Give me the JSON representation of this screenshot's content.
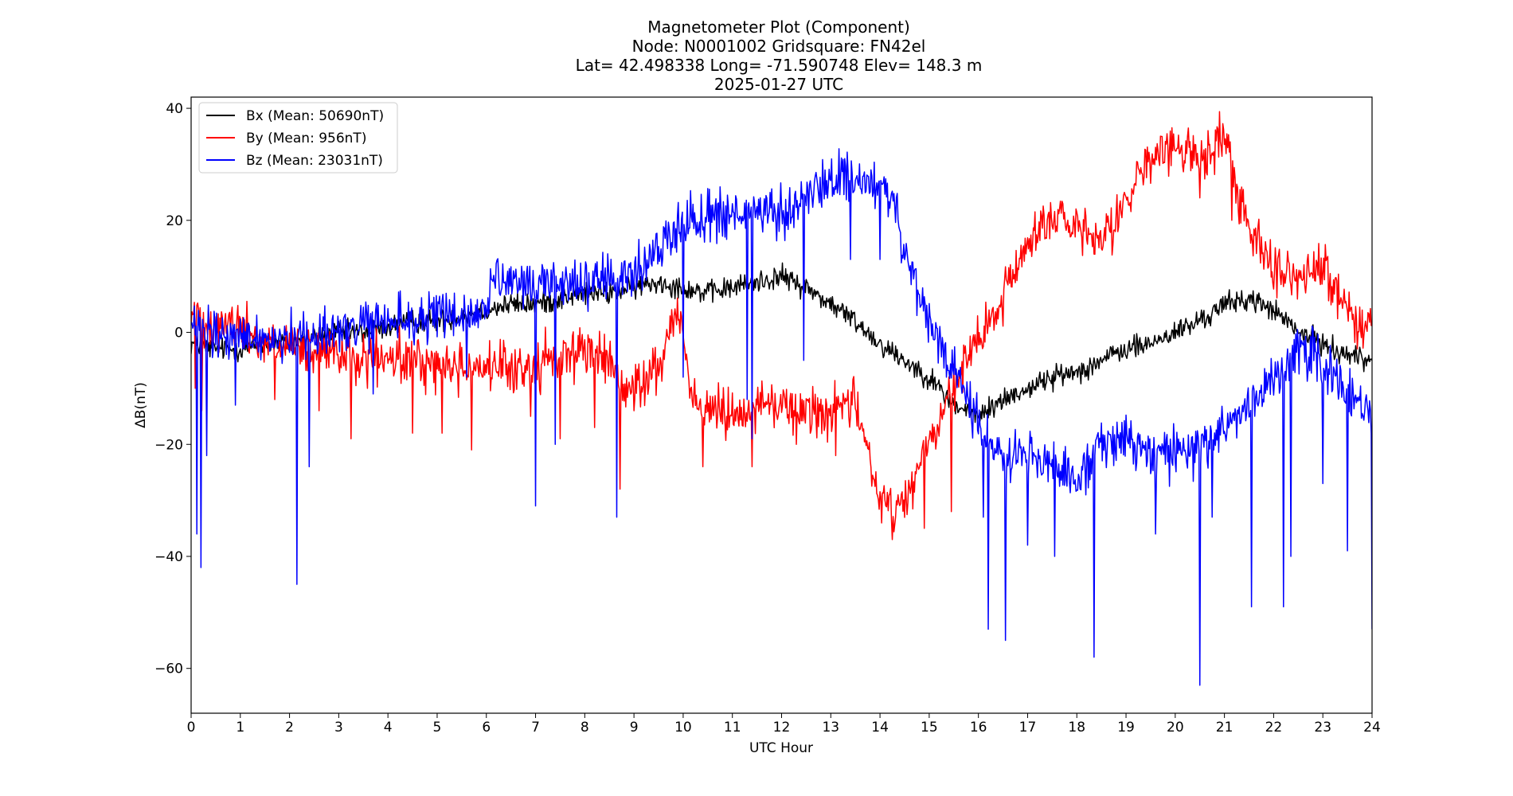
{
  "chart_data": {
    "type": "line",
    "title_lines": [
      "Magnetometer Plot (Component)",
      "Node:  N0001002     Gridsquare:  FN42el",
      "Lat= 42.498338    Long= -71.590748    Elev= 148.3 m",
      "2025-01-27  UTC"
    ],
    "xlabel": "UTC Hour",
    "ylabel": "ΔB(nT)",
    "xlim": [
      0,
      24
    ],
    "ylim": [
      -68,
      42
    ],
    "x_ticks": [
      0,
      1,
      2,
      3,
      4,
      5,
      6,
      7,
      8,
      9,
      10,
      11,
      12,
      13,
      14,
      15,
      16,
      17,
      18,
      19,
      20,
      21,
      22,
      23,
      24
    ],
    "x_tick_labels": [
      "0",
      "1",
      "2",
      "3",
      "4",
      "5",
      "6",
      "7",
      "8",
      "9",
      "10",
      "11",
      "12",
      "13",
      "14",
      "15",
      "16",
      "17",
      "18",
      "19",
      "20",
      "21",
      "22",
      "23",
      "24"
    ],
    "y_ticks": [
      40,
      20,
      0,
      -20,
      -40,
      -60
    ],
    "y_tick_labels": [
      "40",
      "20",
      "0",
      "−20",
      "−40",
      "−60"
    ],
    "grid": false,
    "legend_position": "top-left",
    "series": [
      {
        "name": "Bx (Mean: 50690nT)",
        "color": "#000000",
        "noise": 1.0,
        "x": [
          0,
          0.5,
          1,
          1.5,
          2,
          2.5,
          3,
          3.5,
          4,
          4.5,
          5,
          5.5,
          6,
          6.5,
          7,
          7.5,
          8,
          8.5,
          9,
          9.5,
          10,
          10.5,
          11,
          11.5,
          12,
          12.5,
          13,
          13.5,
          14,
          14.5,
          15,
          15.5,
          16,
          16.5,
          17,
          17.5,
          18,
          18.5,
          19,
          19.5,
          20,
          20.5,
          21,
          21.5,
          22,
          22.5,
          23,
          23.5,
          24
        ],
        "values": [
          -2,
          -3,
          -3,
          -2,
          -2,
          -1,
          0,
          0,
          1,
          2,
          2,
          3,
          4,
          5,
          5,
          6,
          7,
          7,
          8,
          9,
          8,
          7,
          8,
          9,
          10,
          8,
          5,
          2,
          -2,
          -5,
          -8,
          -13,
          -15,
          -12,
          -10,
          -8,
          -7,
          -5,
          -3,
          -2,
          0,
          2,
          5,
          6,
          4,
          0,
          -2,
          -4,
          -5
        ],
        "spikes": []
      },
      {
        "name": "By (Mean: 956nT)",
        "color": "#ff0000",
        "noise": 2.2,
        "x": [
          0,
          0.5,
          1,
          1.5,
          2,
          2.5,
          3,
          3.5,
          4,
          4.5,
          5,
          5.5,
          6,
          6.5,
          7,
          7.5,
          8,
          8.5,
          8.8,
          9.2,
          9.6,
          9.9,
          10.2,
          10.5,
          11,
          11.5,
          12,
          12.5,
          13,
          13.5,
          13.8,
          14,
          14.3,
          14.6,
          15,
          15.3,
          15.6,
          15.9,
          16.2,
          16.5,
          17,
          17.5,
          18,
          18.5,
          19,
          19.5,
          20,
          20.5,
          21,
          21.3,
          21.6,
          22,
          22.5,
          23,
          23.5,
          24
        ],
        "values": [
          3,
          2,
          1,
          -2,
          -3,
          -4,
          -4,
          -5,
          -5,
          -5,
          -6,
          -6,
          -6,
          -7,
          -6,
          -4,
          -3,
          -5,
          -11,
          -9,
          -4,
          5,
          -12,
          -14,
          -14,
          -13,
          -13,
          -14,
          -14,
          -13,
          -22,
          -30,
          -32,
          -28,
          -20,
          -14,
          -8,
          -3,
          1,
          6,
          16,
          21,
          18,
          15,
          24,
          31,
          33,
          31,
          35,
          24,
          18,
          12,
          9,
          12,
          4,
          1
        ],
        "spikes": [
          [
            0.08,
            -10
          ],
          [
            0.22,
            -14
          ],
          [
            1.7,
            -12
          ],
          [
            2.6,
            -14
          ],
          [
            3.25,
            -19
          ],
          [
            4.5,
            -18
          ],
          [
            5.1,
            -18
          ],
          [
            5.7,
            -21
          ],
          [
            6.9,
            -15
          ],
          [
            7.5,
            -19
          ],
          [
            8.2,
            -17
          ],
          [
            8.72,
            -28
          ],
          [
            9.0,
            -14
          ],
          [
            10.4,
            -24
          ],
          [
            11.4,
            -24
          ],
          [
            12.3,
            -20
          ],
          [
            13.1,
            -22
          ],
          [
            14.25,
            -37
          ],
          [
            14.9,
            -35
          ],
          [
            15.45,
            -32
          ],
          [
            20.5,
            24
          ],
          [
            21.15,
            20
          ]
        ]
      },
      {
        "name": "Bz (Mean: 23031nT)",
        "color": "#0000ff",
        "noise": 2.2,
        "x": [
          0,
          0.3,
          0.5,
          1,
          1.5,
          2,
          2.5,
          3,
          3.5,
          4,
          4.5,
          5,
          5.5,
          5.9,
          6.1,
          6.5,
          7,
          7.5,
          8,
          8.5,
          9,
          9.3,
          9.7,
          10,
          10.5,
          11,
          11.5,
          12,
          12.5,
          13,
          13.3,
          13.6,
          14,
          14.3,
          14.6,
          14.9,
          15.2,
          15.5,
          15.8,
          16.1,
          16.5,
          17,
          17.5,
          18,
          18.5,
          19,
          19.5,
          20,
          20.5,
          21,
          21.5,
          22,
          22.5,
          23,
          23.3,
          23.6,
          24
        ],
        "values": [
          1,
          0,
          -1,
          -1,
          -1,
          -1,
          0,
          0,
          1,
          2,
          2,
          3,
          3,
          3,
          9,
          8,
          9,
          9,
          9,
          9,
          10,
          13,
          17,
          20,
          21,
          21,
          21,
          21,
          24,
          27,
          28,
          27,
          26,
          22,
          12,
          3,
          -2,
          -6,
          -13,
          -18,
          -22,
          -21,
          -24,
          -26,
          -20,
          -19,
          -22,
          -21,
          -21,
          -17,
          -13,
          -8,
          -2,
          -6,
          -9,
          -12,
          -14
        ],
        "spikes": [
          [
            0.12,
            -36
          ],
          [
            0.2,
            -42
          ],
          [
            0.32,
            -22
          ],
          [
            0.9,
            -13
          ],
          [
            2.15,
            -45
          ],
          [
            2.4,
            -24
          ],
          [
            3.7,
            -11
          ],
          [
            5.6,
            -8
          ],
          [
            7.0,
            -31
          ],
          [
            7.4,
            -20
          ],
          [
            8.65,
            -33
          ],
          [
            10.0,
            -8
          ],
          [
            11.3,
            -12
          ],
          [
            11.4,
            -19
          ],
          [
            12.45,
            -5
          ],
          [
            13.4,
            13
          ],
          [
            14.0,
            13
          ],
          [
            14.75,
            3
          ],
          [
            15.35,
            -8
          ],
          [
            16.1,
            -33
          ],
          [
            16.2,
            -53
          ],
          [
            16.55,
            -55
          ],
          [
            17.0,
            -38
          ],
          [
            17.55,
            -40
          ],
          [
            18.35,
            -58
          ],
          [
            19.6,
            -36
          ],
          [
            20.5,
            -63
          ],
          [
            20.75,
            -33
          ],
          [
            21.55,
            -49
          ],
          [
            22.2,
            -49
          ],
          [
            22.35,
            -40
          ],
          [
            23.0,
            -27
          ],
          [
            23.5,
            -39
          ],
          [
            24.0,
            -53
          ]
        ]
      }
    ]
  }
}
